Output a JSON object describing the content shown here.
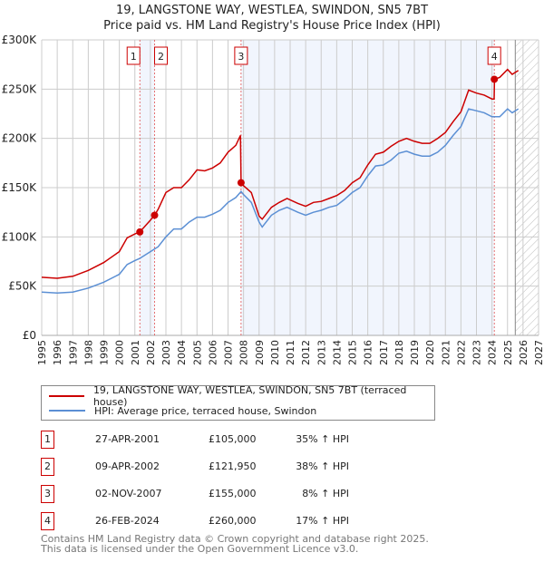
{
  "title_line1": "19, LANGSTONE WAY, WESTLEA, SWINDON, SN5 7BT",
  "title_line2": "Price paid vs. HM Land Registry's House Price Index (HPI)",
  "chart_data": {
    "type": "line",
    "title": "19, LANGSTONE WAY, WESTLEA, SWINDON, SN5 7BT — Price paid vs. HM Land Registry's House Price Index (HPI)",
    "xlim": [
      1995,
      2027
    ],
    "ylim": [
      0,
      300000
    ],
    "x_ticks": [
      "1995",
      "1996",
      "1997",
      "1998",
      "1999",
      "2000",
      "2001",
      "2002",
      "2003",
      "2004",
      "2005",
      "2006",
      "2007",
      "2008",
      "2009",
      "2010",
      "2011",
      "2012",
      "2013",
      "2014",
      "2015",
      "2016",
      "2017",
      "2018",
      "2019",
      "2020",
      "2021",
      "2022",
      "2023",
      "2024",
      "2025",
      "2026",
      "2027"
    ],
    "y_ticks": [
      {
        "v": 0,
        "label": "£0"
      },
      {
        "v": 50000,
        "label": "£50K"
      },
      {
        "v": 100000,
        "label": "£100K"
      },
      {
        "v": 150000,
        "label": "£150K"
      },
      {
        "v": 200000,
        "label": "£200K"
      },
      {
        "v": 250000,
        "label": "£250K"
      },
      {
        "v": 300000,
        "label": "£300K"
      }
    ],
    "forecast_start": 2025.5,
    "shaded_ranges": [
      [
        2001.32,
        2002.27
      ],
      [
        2007.84,
        2024.15
      ]
    ],
    "series": [
      {
        "name": "19, LANGSTONE WAY, WESTLEA, SWINDON, SN5 7BT (terraced house)",
        "color": "#cc0000",
        "x": [
          1995,
          1996,
          1997,
          1998,
          1999,
          2000,
          2000.5,
          2001,
          2001.32,
          2002,
          2002.27,
          2002.5,
          2003,
          2003.5,
          2004,
          2004.5,
          2005,
          2005.5,
          2006,
          2006.5,
          2007,
          2007.5,
          2007.8,
          2007.84,
          2008,
          2008.5,
          2009,
          2009.2,
          2009.8,
          2010.3,
          2010.8,
          2011.5,
          2012,
          2012.5,
          2013,
          2013.5,
          2014,
          2014.5,
          2015,
          2015.5,
          2016,
          2016.5,
          2017,
          2017.5,
          2018,
          2018.5,
          2019,
          2019.5,
          2020,
          2020.5,
          2021,
          2021.5,
          2022,
          2022.5,
          2023,
          2023.5,
          2024,
          2024.14,
          2024.16,
          2024.5,
          2025,
          2025.3,
          2025.7
        ],
        "y": [
          59000,
          58000,
          60000,
          66000,
          74000,
          85000,
          99000,
          103000,
          105000,
          117000,
          121950,
          128000,
          145000,
          150000,
          150000,
          158000,
          168000,
          167000,
          170000,
          175000,
          186000,
          193000,
          203000,
          155000,
          152000,
          145000,
          121000,
          118000,
          130000,
          135000,
          139000,
          134000,
          131000,
          135000,
          136000,
          139000,
          142000,
          147000,
          155000,
          160000,
          173000,
          184000,
          186000,
          192000,
          197000,
          200000,
          197000,
          195000,
          195000,
          200000,
          206000,
          217000,
          227000,
          249000,
          246000,
          244000,
          240000,
          240000,
          260000,
          262000,
          270000,
          265000,
          269000
        ]
      },
      {
        "name": "HPI: Average price, terraced house, Swindon",
        "color": "#5b8fd4",
        "x": [
          1995,
          1996,
          1997,
          1998,
          1999,
          2000,
          2000.5,
          2001,
          2001.3,
          2002,
          2002.5,
          2003,
          2003.5,
          2004,
          2004.5,
          2005,
          2005.5,
          2006,
          2006.5,
          2007,
          2007.5,
          2007.84,
          2008,
          2008.5,
          2009,
          2009.2,
          2009.8,
          2010.3,
          2010.8,
          2011.5,
          2012,
          2012.5,
          2013,
          2013.5,
          2014,
          2014.5,
          2015,
          2015.5,
          2016,
          2016.5,
          2017,
          2017.5,
          2018,
          2018.5,
          2019,
          2019.5,
          2020,
          2020.5,
          2021,
          2021.5,
          2022,
          2022.5,
          2023,
          2023.5,
          2024,
          2024.5,
          2025,
          2025.3,
          2025.7
        ],
        "y": [
          44000,
          43000,
          44000,
          48000,
          54000,
          62000,
          72000,
          76000,
          78000,
          85000,
          90000,
          100000,
          108000,
          108000,
          115000,
          120000,
          120000,
          123000,
          127000,
          135000,
          140000,
          146000,
          143000,
          135000,
          115000,
          110000,
          122000,
          127000,
          130000,
          125000,
          122000,
          125000,
          127000,
          130000,
          132000,
          138000,
          145000,
          150000,
          162000,
          172000,
          173000,
          178000,
          185000,
          187000,
          184000,
          182000,
          182000,
          186000,
          193000,
          203000,
          212000,
          230000,
          228000,
          226000,
          222000,
          222000,
          230000,
          226000,
          230000
        ]
      }
    ],
    "sales": [
      {
        "n": "1",
        "x": 2001.32,
        "date": "27-APR-2001",
        "price": 105000,
        "price_label": "£105,000",
        "hpi": "35% ↑ HPI"
      },
      {
        "n": "2",
        "x": 2002.27,
        "date": "09-APR-2002",
        "price": 121950,
        "price_label": "£121,950",
        "hpi": "38% ↑ HPI"
      },
      {
        "n": "3",
        "x": 2007.84,
        "date": "02-NOV-2007",
        "price": 155000,
        "price_label": "£155,000",
        "hpi": "8% ↑ HPI"
      },
      {
        "n": "4",
        "x": 2024.15,
        "date": "26-FEB-2024",
        "price": 260000,
        "price_label": "£260,000",
        "hpi": "17% ↑ HPI"
      }
    ]
  },
  "legend": {
    "red": "19, LANGSTONE WAY, WESTLEA, SWINDON, SN5 7BT (terraced house)",
    "blue": "HPI: Average price, terraced house, Swindon"
  },
  "footer": {
    "line1": "Contains HM Land Registry data © Crown copyright and database right 2025.",
    "line2": "This data is licensed under the Open Government Licence v3.0."
  }
}
